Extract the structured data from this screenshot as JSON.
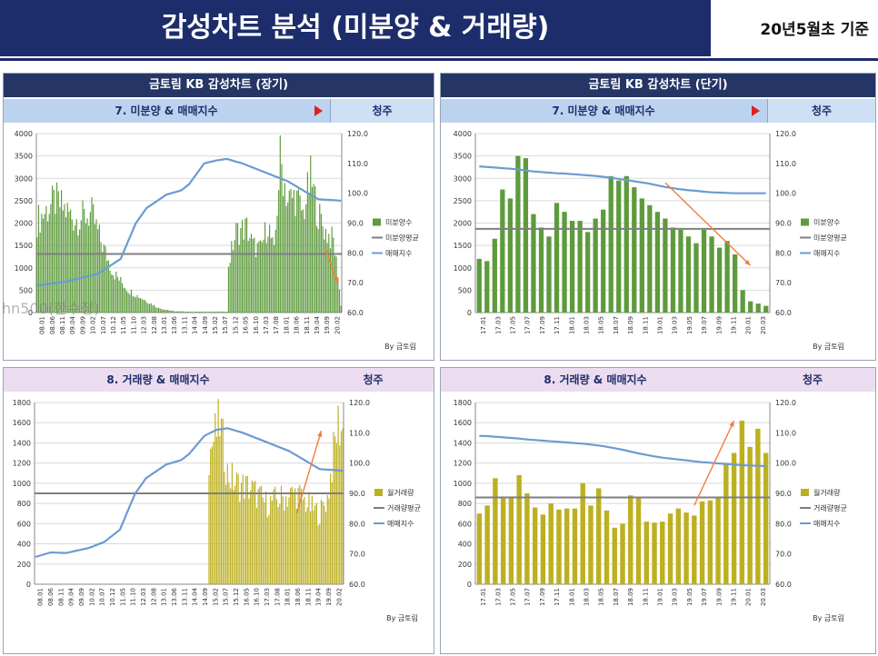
{
  "header": {
    "title": "감성차트 분석 (미분양 & 거래량)",
    "date": "20년5월초 기준"
  },
  "watermark": "hn500(한수정)",
  "colors": {
    "navy": "#1d2d6b",
    "green": "#5d9b3c",
    "olive": "#bdb020",
    "line": "#6b9bd1",
    "avg": "#7f7f7f",
    "arrow": "#f47c3c"
  },
  "panels": {
    "long_title": "금토림 KB 감성차트 (장기)",
    "short_title": "금토림 KB 감성차트 (단기)",
    "sub1": "7. 미분양 & 매매지수",
    "sub2": "8. 거래량 & 매매지수",
    "region": "청주",
    "credit": "By 금토림"
  },
  "chart_data": [
    {
      "id": "c1",
      "type": "bar",
      "title": "7. 미분양 & 매매지수 (장기)",
      "ylim": [
        0,
        4000
      ],
      "y2lim": [
        60,
        120
      ],
      "yticks": [
        "0",
        "500",
        "1000",
        "1500",
        "2000",
        "2500",
        "3000",
        "3500",
        "4000"
      ],
      "y2ticks": [
        "60.0",
        "70.0",
        "80.0",
        "90.0",
        "100.0",
        "110.0",
        "120.0"
      ],
      "x_labels": [
        "08.01",
        "08.06",
        "08.11",
        "09.04",
        "09.09",
        "10.02",
        "10.07",
        "10.12",
        "11.05",
        "11.10",
        "12.03",
        "12.08",
        "13.01",
        "13.06",
        "13.11",
        "14.04",
        "14.09",
        "15.02",
        "15.07",
        "15.12",
        "16.05",
        "16.10",
        "17.03",
        "17.08",
        "18.01",
        "18.06",
        "18.11",
        "19.04",
        "19.09",
        "20.02"
      ],
      "legend": [
        "미분양수",
        "미분양평균",
        "매매지수"
      ],
      "bar_color": "#5d9b3c",
      "avg": 1310,
      "bars_anchors": [
        [
          0,
          2050
        ],
        [
          12,
          2500
        ],
        [
          25,
          2080
        ],
        [
          36,
          2200
        ],
        [
          42,
          1600
        ],
        [
          50,
          900
        ],
        [
          60,
          500
        ],
        [
          70,
          300
        ],
        [
          80,
          100
        ],
        [
          90,
          30
        ],
        [
          100,
          20
        ],
        [
          125,
          20
        ],
        [
          126,
          1100
        ],
        [
          131,
          1800
        ],
        [
          138,
          1900
        ],
        [
          142,
          1500
        ],
        [
          147,
          1400
        ],
        [
          152,
          2000
        ],
        [
          156,
          1300
        ],
        [
          160,
          3450
        ],
        [
          165,
          2500
        ],
        [
          170,
          2600
        ],
        [
          175,
          2200
        ],
        [
          180,
          3000
        ],
        [
          185,
          2200
        ],
        [
          190,
          1800
        ],
        [
          195,
          1600
        ],
        [
          198,
          900
        ],
        [
          200,
          150
        ]
      ],
      "index_anchors": [
        [
          0,
          69
        ],
        [
          20,
          70.5
        ],
        [
          40,
          73
        ],
        [
          55,
          78
        ],
        [
          65,
          90
        ],
        [
          72,
          95
        ],
        [
          85,
          99.5
        ],
        [
          95,
          101
        ],
        [
          100,
          103
        ],
        [
          110,
          110
        ],
        [
          118,
          111
        ],
        [
          125,
          111.5
        ],
        [
          135,
          110
        ],
        [
          150,
          107
        ],
        [
          165,
          104
        ],
        [
          175,
          101
        ],
        [
          185,
          98
        ],
        [
          200,
          97.5
        ]
      ],
      "n": 201,
      "annotation": {
        "from": [
          190,
          1400
        ],
        "to": [
          198,
          650
        ]
      }
    },
    {
      "id": "c2",
      "type": "bar",
      "title": "7. 미분양 & 매매지수 (단기)",
      "ylim": [
        0,
        4000
      ],
      "y2lim": [
        60,
        120
      ],
      "yticks": [
        "0",
        "500",
        "1000",
        "1500",
        "2000",
        "2500",
        "3000",
        "3500",
        "4000"
      ],
      "y2ticks": [
        "60.0",
        "70.0",
        "80.0",
        "90.0",
        "100.0",
        "110.0",
        "120.0"
      ],
      "x_labels": [
        "17.01",
        "17.03",
        "17.05",
        "17.07",
        "17.09",
        "17.11",
        "18.01",
        "18.03",
        "18.05",
        "18.07",
        "18.09",
        "18.11",
        "19.01",
        "19.03",
        "19.05",
        "19.07",
        "19.09",
        "19.11",
        "20.01",
        "20.03"
      ],
      "legend": [
        "미분양수",
        "미분양평균",
        "매매지수"
      ],
      "bar_color": "#5d9b3c",
      "avg": 1870,
      "values": [
        1200,
        1150,
        1650,
        2750,
        2550,
        3500,
        3450,
        2200,
        1900,
        1700,
        2450,
        2250,
        2050,
        2050,
        1800,
        2100,
        2300,
        3050,
        2950,
        3050,
        2800,
        2550,
        2400,
        2250,
        2100,
        1900,
        1850,
        1700,
        1550,
        1850,
        1700,
        1450,
        1600,
        1300,
        500,
        250,
        200,
        150
      ],
      "index_values": [
        109,
        108.8,
        108.6,
        108.4,
        108.2,
        108,
        107.6,
        107.3,
        107.1,
        106.9,
        106.7,
        106.6,
        106.4,
        106.2,
        106,
        105.8,
        105.5,
        105.2,
        104.8,
        104.4,
        104,
        103.6,
        103.2,
        102.6,
        102.1,
        101.7,
        101.3,
        101,
        100.8,
        100.5,
        100.3,
        100.2,
        100.1,
        100,
        100,
        100,
        100,
        100
      ],
      "annotation": {
        "from": [
          24,
          2900
        ],
        "to": [
          35,
          1050
        ]
      }
    },
    {
      "id": "c3",
      "type": "bar",
      "title": "8. 거래량 & 매매지수 (장기)",
      "ylim": [
        0,
        1800
      ],
      "y2lim": [
        60,
        120
      ],
      "yticks": [
        "0",
        "200",
        "400",
        "600",
        "800",
        "1000",
        "1200",
        "1400",
        "1600",
        "1800"
      ],
      "y2ticks": [
        "60.0",
        "70.0",
        "80.0",
        "90.0",
        "100.0",
        "110.0",
        "120.0"
      ],
      "x_labels": [
        "08.01",
        "08.06",
        "08.11",
        "09.04",
        "09.09",
        "10.02",
        "10.07",
        "10.12",
        "11.05",
        "11.10",
        "12.03",
        "12.08",
        "13.01",
        "13.06",
        "13.11",
        "14.04",
        "14.09",
        "15.02",
        "15.07",
        "15.12",
        "16.05",
        "16.10",
        "17.03",
        "17.08",
        "18.01",
        "18.06",
        "18.11",
        "19.04",
        "19.09",
        "20.02"
      ],
      "legend": [
        "월거래량",
        "거래량평균",
        "매매지수"
      ],
      "bar_color": "#bdb020",
      "avg": 900,
      "bars_start": 113,
      "bars_anchors": [
        [
          113,
          1300
        ],
        [
          120,
          1600
        ],
        [
          125,
          1100
        ],
        [
          130,
          1000
        ],
        [
          140,
          950
        ],
        [
          150,
          800
        ],
        [
          160,
          850
        ],
        [
          170,
          900
        ],
        [
          180,
          750
        ],
        [
          185,
          700
        ],
        [
          190,
          850
        ],
        [
          195,
          1400
        ],
        [
          197,
          1600
        ],
        [
          200,
          1500
        ]
      ],
      "index_anchors": [
        [
          0,
          69
        ],
        [
          10,
          70.5
        ],
        [
          20,
          70.3
        ],
        [
          35,
          72
        ],
        [
          45,
          74
        ],
        [
          55,
          78
        ],
        [
          65,
          90
        ],
        [
          72,
          95
        ],
        [
          85,
          99.5
        ],
        [
          95,
          101
        ],
        [
          100,
          103
        ],
        [
          110,
          109
        ],
        [
          118,
          111
        ],
        [
          125,
          111.5
        ],
        [
          135,
          110
        ],
        [
          150,
          107
        ],
        [
          165,
          104
        ],
        [
          175,
          101
        ],
        [
          185,
          98
        ],
        [
          200,
          97.5
        ]
      ],
      "n": 201,
      "annotation": {
        "from": [
          170,
          700
        ],
        "to": [
          186,
          1520
        ]
      }
    },
    {
      "id": "c4",
      "type": "bar",
      "title": "8. 거래량 & 매매지수 (단기)",
      "ylim": [
        0,
        1800
      ],
      "y2lim": [
        60,
        120
      ],
      "yticks": [
        "0",
        "200",
        "400",
        "600",
        "800",
        "1000",
        "1200",
        "1400",
        "1600",
        "1800"
      ],
      "y2ticks": [
        "60.0",
        "70.0",
        "80.0",
        "90.0",
        "100.0",
        "110.0",
        "120.0"
      ],
      "x_labels": [
        "17.01",
        "17.03",
        "17.05",
        "17.07",
        "17.09",
        "17.11",
        "18.01",
        "18.03",
        "18.05",
        "18.07",
        "18.09",
        "18.11",
        "19.01",
        "19.03",
        "19.05",
        "19.07",
        "19.09",
        "19.11",
        "20.01",
        "20.03"
      ],
      "legend": [
        "월거래량",
        "거래량평균",
        "매매지수"
      ],
      "bar_color": "#bdb020",
      "avg": 860,
      "values": [
        700,
        780,
        1050,
        850,
        870,
        1080,
        900,
        760,
        690,
        800,
        740,
        750,
        750,
        1000,
        780,
        950,
        730,
        560,
        600,
        880,
        860,
        620,
        610,
        620,
        700,
        750,
        710,
        680,
        820,
        830,
        860,
        1200,
        1300,
        1620,
        1360,
        1540,
        1300
      ],
      "index_values": [
        109,
        108.9,
        108.7,
        108.5,
        108.3,
        108.1,
        107.8,
        107.6,
        107.4,
        107.2,
        107,
        106.8,
        106.6,
        106.4,
        106.1,
        105.8,
        105.4,
        104.9,
        104.4,
        103.8,
        103.2,
        102.7,
        102.2,
        101.8,
        101.5,
        101.2,
        100.9,
        100.6,
        100.3,
        100.1,
        99.9,
        99.7,
        99.5,
        99.3,
        99.2,
        99.1,
        99
      ],
      "annotation": {
        "from": [
          27,
          780
        ],
        "to": [
          32,
          1620
        ]
      }
    }
  ]
}
